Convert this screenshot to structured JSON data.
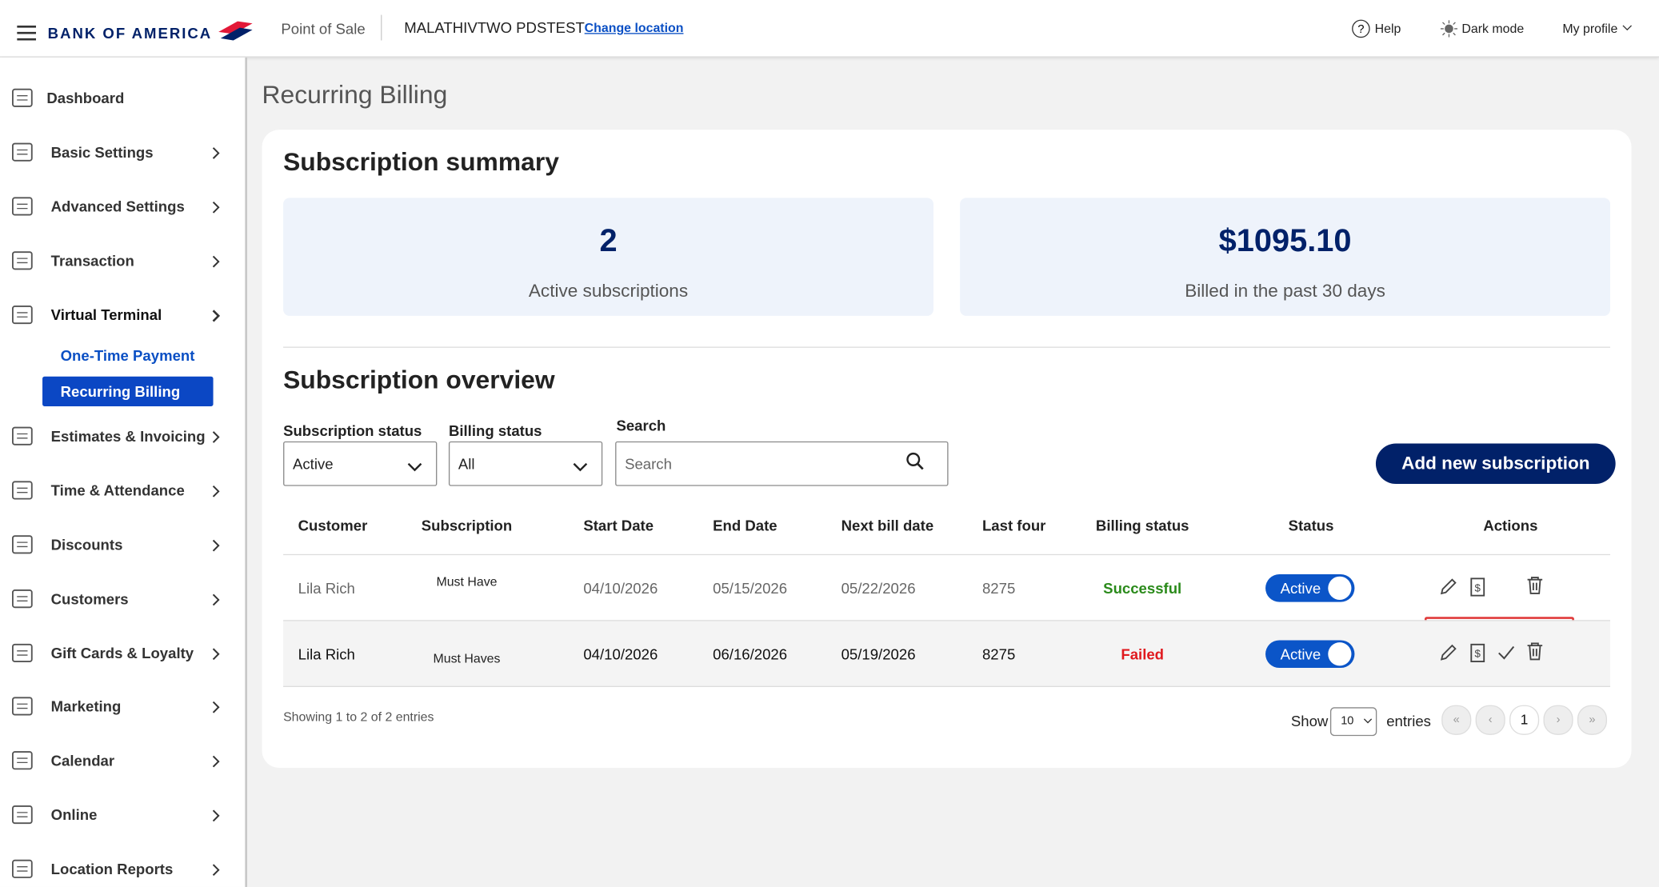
{
  "header": {
    "brand": "BANK OF AMERICA",
    "app": "Point of Sale",
    "location": "MALATHIVTWO PDSTEST",
    "change_location": "Change location",
    "help": "Help",
    "dark_mode": "Dark mode",
    "profile": "My profile"
  },
  "sidebar": {
    "items": [
      {
        "label": "Dashboard"
      },
      {
        "label": "Basic Settings"
      },
      {
        "label": "Advanced Settings"
      },
      {
        "label": "Transaction"
      },
      {
        "label": "Virtual Terminal"
      },
      {
        "label": "Estimates & Invoicing"
      },
      {
        "label": "Time & Attendance"
      },
      {
        "label": "Discounts"
      },
      {
        "label": "Customers"
      },
      {
        "label": "Gift Cards & Loyalty"
      },
      {
        "label": "Marketing"
      },
      {
        "label": "Calendar"
      },
      {
        "label": "Online"
      },
      {
        "label": "Location Reports"
      }
    ],
    "subitems": [
      "One-Time Payment",
      "Recurring Billing"
    ]
  },
  "page_title": "Recurring Billing",
  "summary": {
    "title": "Subscription summary",
    "cards": [
      {
        "value": "2",
        "label": "Active subscriptions"
      },
      {
        "value": "$1095.10",
        "label": "Billed in the past 30 days"
      }
    ]
  },
  "overview": {
    "title": "Subscription overview",
    "filters": [
      {
        "label": "Subscription status",
        "value": "Active"
      },
      {
        "label": "Billing status",
        "value": "All"
      }
    ],
    "search": {
      "label": "Search",
      "placeholder": "Search"
    },
    "add_button": "Add new subscription",
    "table": {
      "columns": [
        "Customer",
        "Subscription",
        "Start Date",
        "End Date",
        "Next bill date",
        "Last four",
        "Billing status",
        "Status",
        "Actions"
      ],
      "rows": [
        [
          "Lila Rich",
          "Must Have",
          "04/10/2026",
          "05/15/2026",
          "05/22/2026",
          "8275",
          "Successful",
          "Active"
        ],
        [
          "Lila Rich",
          "Must Haves",
          "04/10/2026",
          "06/16/2026",
          "05/19/2026",
          "8275",
          "Failed",
          "Active"
        ]
      ]
    },
    "footer": {
      "info": "Showing 1 to 2 of 2 entries",
      "show": "Show",
      "page_size": "10",
      "entries": "entries",
      "pages": [
        "«",
        "‹",
        "1",
        "›",
        "»"
      ]
    }
  }
}
